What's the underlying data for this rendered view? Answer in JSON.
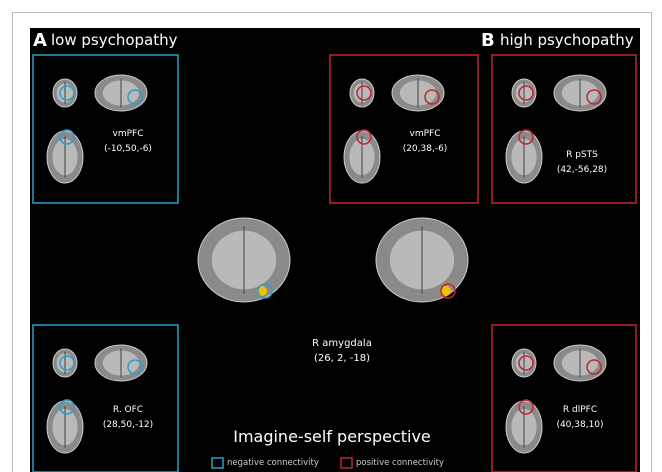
{
  "panels": [
    {
      "letter": "A",
      "label": "low psychopathy"
    },
    {
      "letter": "B",
      "label": "high psychopathy"
    }
  ],
  "regions": [
    {
      "name": "vmPFC",
      "coords": "(-10,50,-6)"
    },
    {
      "name": "vmPFC",
      "coords": "(20,38,-6)"
    },
    {
      "name": "R pSTS",
      "coords": "(42,-56,28)"
    },
    {
      "name": "R. OFC",
      "coords": "(28,50,-12)"
    },
    {
      "name": "R dlPFC",
      "coords": "(40,38,10)"
    }
  ],
  "seed": {
    "name": "R amygdala",
    "coords": "(26, 2, -18)"
  },
  "caption": "Imagine-self perspective",
  "legend": [
    {
      "label": "negative connectivity",
      "color": "#2b9fc9"
    },
    {
      "label": "positive connectivity",
      "color": "#c1272d"
    }
  ]
}
